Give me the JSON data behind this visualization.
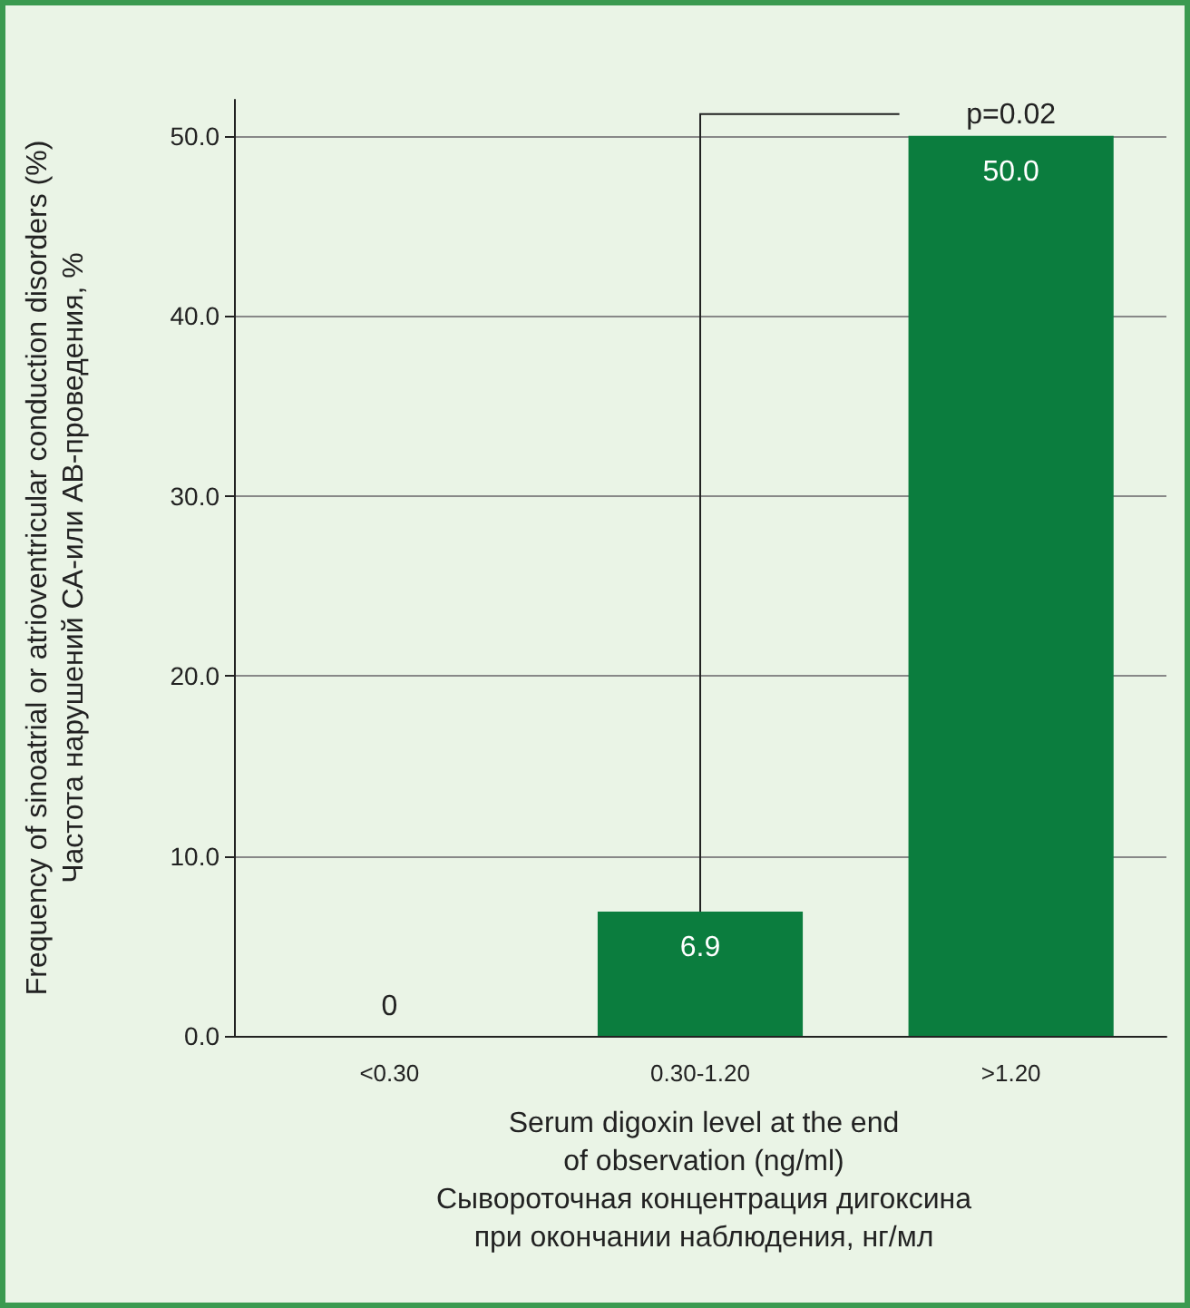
{
  "chart_data": {
    "type": "bar",
    "ylabel": "Frequency of sinoatrial or atrioventricular conduction disorders (%)\nЧастота нарушений СА-или АВ-проведения, %",
    "xlabel": "Serum digoxin level at the end\nof observation (ng/ml)\nСывороточная концентрация дигоксина\nпри окончании наблюдения, нг/мл",
    "categories": [
      "<0.30",
      "0.30-1.20",
      ">1.20"
    ],
    "values": [
      0,
      6.9,
      50.0
    ],
    "value_labels": [
      "0",
      "6.9",
      "50.0"
    ],
    "color": "#0b7d3e",
    "ylim": [
      0,
      52
    ],
    "yticks": [
      {
        "value": 0,
        "label": "0.0"
      },
      {
        "value": 10,
        "label": "10.0"
      },
      {
        "value": 20,
        "label": "20.0"
      },
      {
        "value": 30,
        "label": "30.0"
      },
      {
        "value": 40,
        "label": "40.0"
      },
      {
        "value": 50,
        "label": "50.0"
      }
    ],
    "grid": "y",
    "annotations": [
      "p=0.02"
    ]
  }
}
